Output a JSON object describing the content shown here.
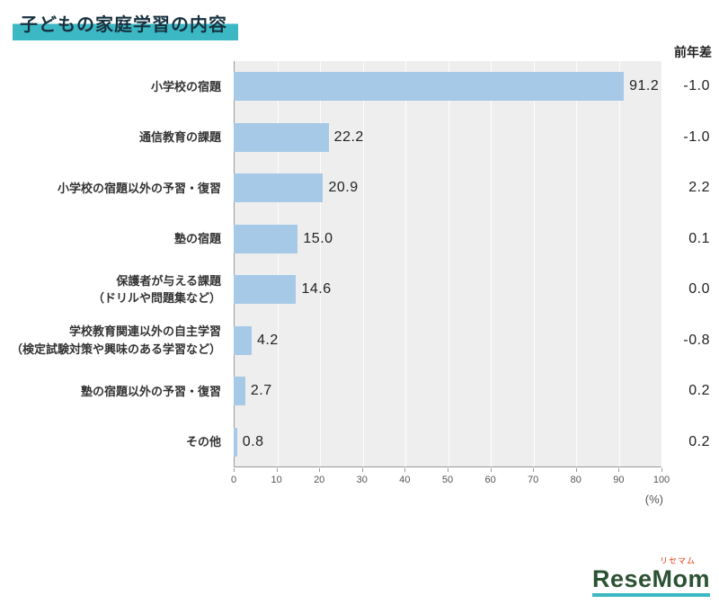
{
  "title": "子どもの家庭学習の内容",
  "diff_header": "前年差",
  "unit_label": "(%)",
  "logo": {
    "text": "ReseMom",
    "ruby": "リセマム"
  },
  "colors": {
    "bar": "#a6c9e7",
    "accent_teal": "#3cb7c4",
    "plot_bg": "#eeeeee"
  },
  "chart_data": {
    "type": "bar",
    "orientation": "horizontal",
    "title": "子どもの家庭学習の内容",
    "xlim": [
      0,
      100
    ],
    "x_unit": "%",
    "ticks": [
      0,
      10,
      20,
      30,
      40,
      50,
      60,
      70,
      80,
      90,
      100
    ],
    "categories": [
      "小学校の宿題",
      "通信教育の課題",
      "小学校の宿題以外の予習・復習",
      "塾の宿題",
      "保護者が与える課題（ドリルや問題集など）",
      "学校教育関連以外の自主学習（検定試験対策や興味のある学習など）",
      "塾の宿題以外の予習・復習",
      "その他"
    ],
    "label_lines": [
      [
        "小学校の宿題"
      ],
      [
        "通信教育の課題"
      ],
      [
        "小学校の宿題以外の予習・復習"
      ],
      [
        "塾の宿題"
      ],
      [
        "保護者が与える課題",
        "（ドリルや問題集など）"
      ],
      [
        "学校教育関連以外の自主学習",
        "（検定試験対策や興味のある学習など）"
      ],
      [
        "塾の宿題以外の予習・復習"
      ],
      [
        "その他"
      ]
    ],
    "values": [
      91.2,
      22.2,
      20.9,
      15.0,
      14.6,
      4.2,
      2.7,
      0.8
    ],
    "diffs": [
      -1.0,
      -1.0,
      2.2,
      0.1,
      0.0,
      -0.8,
      0.2,
      0.2
    ],
    "diff_column_label": "前年差",
    "grid": true,
    "legend": "none"
  }
}
